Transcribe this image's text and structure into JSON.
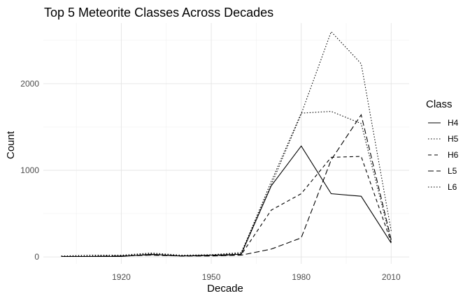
{
  "chart_data": {
    "type": "line",
    "title": "Top 5 Meteorite Classes Across Decades",
    "xlabel": "Decade",
    "ylabel": "Count",
    "x": [
      1900,
      1910,
      1920,
      1930,
      1940,
      1950,
      1960,
      1970,
      1980,
      1990,
      2000,
      2010
    ],
    "x_ticks": [
      1920,
      1950,
      1980,
      2010
    ],
    "y_ticks": [
      0,
      1000,
      2000
    ],
    "xlim": [
      1894,
      2016
    ],
    "ylim": [
      -80,
      2700
    ],
    "grid": true,
    "legend": {
      "title": "Class",
      "position": "right"
    },
    "series": [
      {
        "name": "H4",
        "linetype": "solid",
        "values": [
          5,
          5,
          5,
          30,
          10,
          20,
          30,
          820,
          1280,
          730,
          700,
          160
        ]
      },
      {
        "name": "H5",
        "linetype": "dotted",
        "values": [
          10,
          15,
          15,
          35,
          15,
          25,
          40,
          870,
          1660,
          1680,
          1540,
          180
        ]
      },
      {
        "name": "H6",
        "linetype": "dashed",
        "values": [
          5,
          5,
          10,
          25,
          10,
          15,
          25,
          540,
          730,
          1150,
          1160,
          170
        ]
      },
      {
        "name": "L5",
        "linetype": "longdash",
        "values": [
          5,
          5,
          10,
          20,
          10,
          10,
          20,
          90,
          220,
          1120,
          1640,
          200
        ]
      },
      {
        "name": "L6",
        "linetype": "dotted",
        "values": [
          10,
          20,
          20,
          45,
          20,
          25,
          50,
          830,
          1650,
          2600,
          2230,
          300
        ]
      }
    ]
  }
}
